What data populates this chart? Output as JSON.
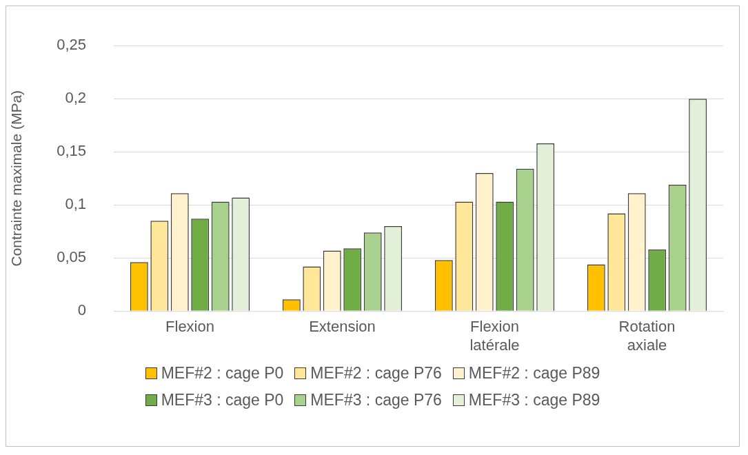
{
  "chart_data": {
    "type": "bar",
    "ylabel": "Contrainte maximale (MPa)",
    "categories": [
      "Flexion",
      "Extension",
      "Flexion latérale",
      "Rotation axiale"
    ],
    "series": [
      {
        "name": "MEF#2 : cage P0",
        "color": "#ffc000",
        "values": [
          0.046,
          0.011,
          0.048,
          0.044
        ]
      },
      {
        "name": "MEF#2 : cage P76",
        "color": "#ffe699",
        "values": [
          0.085,
          0.042,
          0.103,
          0.092
        ]
      },
      {
        "name": "MEF#2 : cage P89",
        "color": "#fff2cc",
        "values": [
          0.111,
          0.057,
          0.13,
          0.111
        ]
      },
      {
        "name": "MEF#3 : cage P0",
        "color": "#70ad47",
        "values": [
          0.087,
          0.059,
          0.103,
          0.058
        ]
      },
      {
        "name": "MEF#3 : cage P76",
        "color": "#a9d18e",
        "values": [
          0.103,
          0.074,
          0.134,
          0.119
        ]
      },
      {
        "name": "MEF#3 : cage P89",
        "color": "#e2f0d9",
        "values": [
          0.107,
          0.08,
          0.158,
          0.2
        ]
      }
    ],
    "ylim": [
      0,
      0.25
    ],
    "yticks": [
      {
        "value": 0,
        "label": "0"
      },
      {
        "value": 0.05,
        "label": "0,05"
      },
      {
        "value": 0.1,
        "label": "0,1"
      },
      {
        "value": 0.15,
        "label": "0,15"
      },
      {
        "value": 0.2,
        "label": "0,2"
      },
      {
        "value": 0.25,
        "label": "0,25"
      }
    ],
    "grid": "y",
    "legend": "bottom"
  }
}
